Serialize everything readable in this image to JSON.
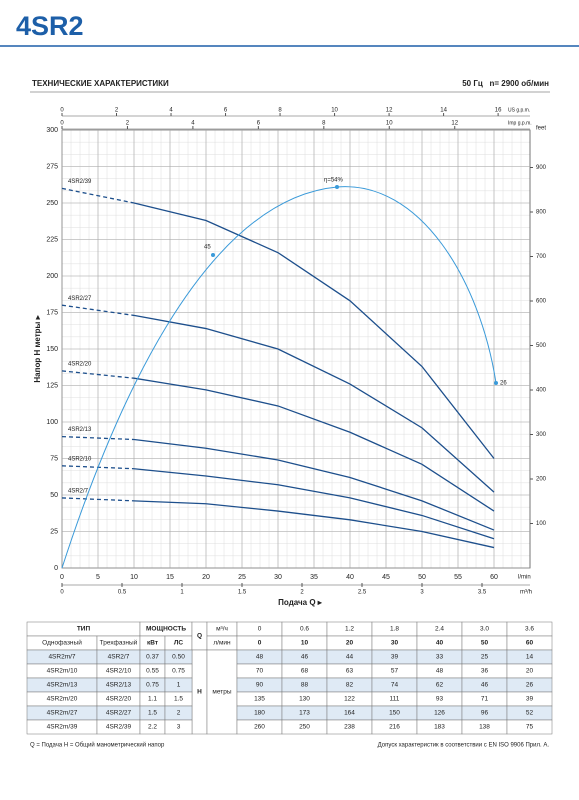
{
  "header": {
    "title": "4SR2"
  },
  "section": {
    "title": "ТЕХНИЧЕСКИЕ ХАРАКТЕРИСТИКИ",
    "spec": "50 Гц   n= 2900 об/мин"
  },
  "chart_data": {
    "type": "line",
    "x_label": "Подача Q ▸",
    "y_label": "Напор H метры ▸",
    "color": "#1d4f8c",
    "grid": true,
    "x": [
      0,
      10,
      20,
      30,
      40,
      50,
      60
    ],
    "x_unit": "l/min",
    "xlim": [
      0,
      65
    ],
    "xticks": [
      0,
      5,
      10,
      15,
      20,
      25,
      30,
      35,
      40,
      45,
      50,
      55,
      60
    ],
    "ylim": [
      0,
      300
    ],
    "yticks": [
      0,
      25,
      50,
      75,
      100,
      125,
      150,
      175,
      200,
      225,
      250,
      275,
      300
    ],
    "y2_unit": "feet",
    "y2lim": [
      0,
      984.25
    ],
    "y2ticks": [
      100,
      200,
      300,
      400,
      500,
      600,
      700,
      800,
      900
    ],
    "top_axes": [
      {
        "unit": "US g.p.m.",
        "lim": [
          0,
          17.17
        ],
        "ticks": [
          0,
          2,
          4,
          6,
          8,
          10,
          12,
          14,
          16
        ]
      },
      {
        "unit": "Imp g.p.m.",
        "lim": [
          0,
          14.3
        ],
        "ticks": [
          0,
          2,
          4,
          6,
          8,
          10,
          12
        ]
      }
    ],
    "bottom_axis2": {
      "unit": "m³/h",
      "lim": [
        0,
        3.9
      ],
      "ticks": [
        0,
        0.5,
        1,
        1.5,
        2,
        2.5,
        3,
        3.5
      ]
    },
    "series": [
      {
        "name": "4SR2/7",
        "values": [
          48,
          46,
          44,
          39,
          33,
          25,
          14
        ]
      },
      {
        "name": "4SR2/10",
        "values": [
          70,
          68,
          63,
          57,
          48,
          36,
          20
        ]
      },
      {
        "name": "4SR2/13",
        "values": [
          90,
          88,
          82,
          74,
          62,
          46,
          26
        ]
      },
      {
        "name": "4SR2/20",
        "values": [
          135,
          130,
          122,
          111,
          93,
          71,
          39
        ]
      },
      {
        "name": "4SR2/27",
        "values": [
          180,
          173,
          164,
          150,
          126,
          96,
          52
        ]
      },
      {
        "name": "4SR2/39",
        "values": [
          260,
          250,
          238,
          216,
          183,
          138,
          75
        ]
      }
    ],
    "efficiency": {
      "color": "#3a9ad9",
      "labels": [
        "45",
        "η=54%",
        "26"
      ]
    }
  },
  "table": {
    "type_header": "ТИП",
    "power_header": "МОЩНОСТЬ",
    "single_phase": "Однофазный",
    "three_phase": "Трехфазный",
    "kw": "кВт",
    "hp": "ЛС",
    "q": "Q",
    "m3h": "м³/ч",
    "lmin": "л/мин",
    "h": "H",
    "h_unit": "метры",
    "q_m3h": [
      "0",
      "0.6",
      "1.2",
      "1.8",
      "2.4",
      "3.0",
      "3.6"
    ],
    "rows": [
      [
        "4SR2m/7",
        "0.37",
        "0.50"
      ],
      [
        "4SR2m/10",
        "0.55",
        "0.75"
      ],
      [
        "4SR2m/13",
        "0.75",
        "1"
      ],
      [
        "4SR2m/20",
        "1.1",
        "1.5"
      ],
      [
        "4SR2m/27",
        "1.5",
        "2"
      ],
      [
        "4SR2m/39",
        "2.2",
        "3"
      ]
    ]
  },
  "footer": {
    "left": "Q = Подача   H = Общий манометрический напор",
    "right": "Допуск характеристик в соответствии с EN ISO 9906 Прил. А."
  }
}
